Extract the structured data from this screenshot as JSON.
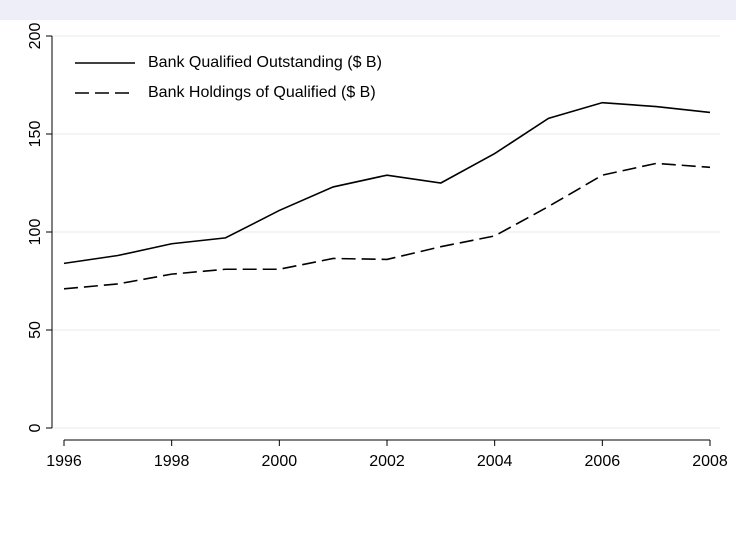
{
  "chart_data": {
    "type": "line",
    "x": [
      1996,
      1997,
      1998,
      1999,
      2000,
      2001,
      2002,
      2003,
      2004,
      2005,
      2006,
      2007,
      2008
    ],
    "series": [
      {
        "name": "Bank Qualified Outstanding ($ B)",
        "color": "#000000",
        "style": "solid",
        "values": [
          84,
          88,
          94,
          97,
          111,
          123,
          129,
          125,
          140,
          158,
          166,
          164,
          161
        ]
      },
      {
        "name": "Bank Holdings of Qualified ($ B)",
        "color": "#000000",
        "style": "dashed",
        "values": [
          71,
          73.5,
          78.5,
          81,
          81,
          86.5,
          86,
          92.5,
          98,
          113,
          129,
          135,
          133
        ]
      }
    ],
    "xlim": [
      1996,
      2008
    ],
    "xticks": [
      1996,
      1998,
      2000,
      2002,
      2004,
      2006,
      2008
    ],
    "ylim": [
      0,
      200
    ],
    "yticks": [
      0,
      50,
      100,
      150,
      200
    ],
    "grid": true,
    "legend": "top-left"
  }
}
